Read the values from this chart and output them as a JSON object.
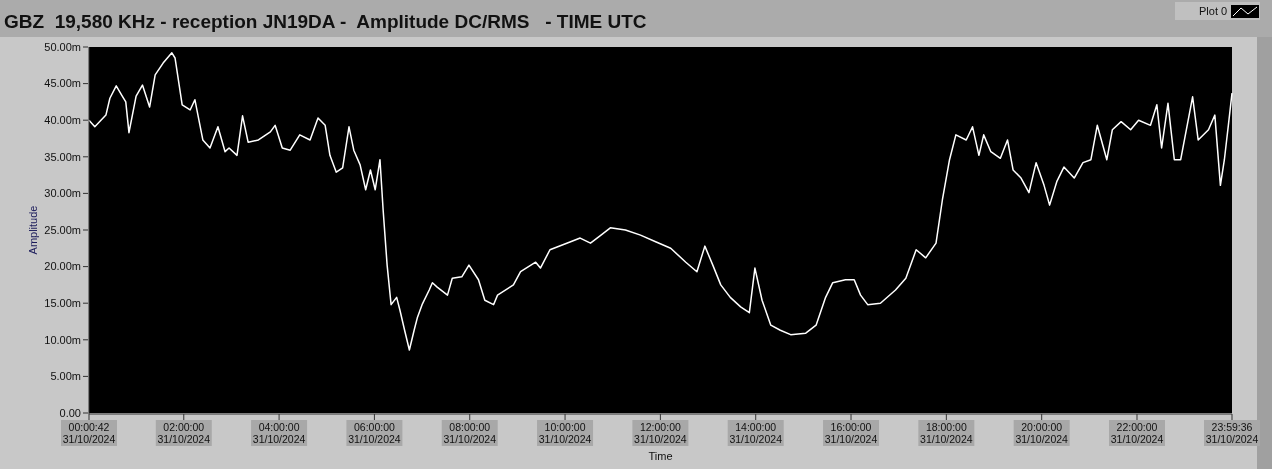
{
  "chart_data": {
    "type": "line",
    "title": "GBZ  19,580 KHz - reception JN19DA -  Amplitude DC/RMS   - TIME UTC",
    "xlabel": "Time",
    "ylabel": "Amplitude",
    "xlim": [
      "2024-10-31T00:00:42",
      "2024-10-31T23:59:36"
    ],
    "ylim": [
      0,
      50
    ],
    "xticks": [
      {
        "value": "2024-10-31T00:00:42",
        "label": "00:00:42 31/10/2024"
      },
      {
        "value": "2024-10-31T02:00",
        "label": "02:00:00 31/10/2024"
      },
      {
        "value": "2024-10-31T04:00",
        "label": "04:00:00 31/10/2024"
      },
      {
        "value": "2024-10-31T06:00",
        "label": "06:00:00 31/10/2024"
      },
      {
        "value": "2024-10-31T08:00",
        "label": "08:00:00 31/10/2024"
      },
      {
        "value": "2024-10-31T10:00",
        "label": "10:00:00 31/10/2024"
      },
      {
        "value": "2024-10-31T12:00",
        "label": "12:00:00 31/10/2024"
      },
      {
        "value": "2024-10-31T14:00",
        "label": "14:00:00 31/10/2024"
      },
      {
        "value": "2024-10-31T16:00",
        "label": "16:00:00 31/10/2024"
      },
      {
        "value": "2024-10-31T18:00",
        "label": "18:00:00 31/10/2024"
      },
      {
        "value": "2024-10-31T20:00",
        "label": "20:00:00 31/10/2024"
      },
      {
        "value": "2024-10-31T22:00",
        "label": "22:00:00 31/10/2024"
      },
      {
        "value": "2024-10-31T23:59:36",
        "label": "23:59:36 31/10/2024"
      }
    ],
    "yticks": [
      {
        "value": 0,
        "label": "0.00"
      },
      {
        "value": 5,
        "label": "5.00m"
      },
      {
        "value": 10,
        "label": "10.00m"
      },
      {
        "value": 15,
        "label": "15.00m"
      },
      {
        "value": 20,
        "label": "20.00m"
      },
      {
        "value": 25,
        "label": "25.00m"
      },
      {
        "value": 30,
        "label": "30.00m"
      },
      {
        "value": 35,
        "label": "35.00m"
      },
      {
        "value": 40,
        "label": "40.00m"
      },
      {
        "value": 45,
        "label": "45.00m"
      },
      {
        "value": 50,
        "label": "50.00m"
      }
    ],
    "legend": "top right",
    "grid": false,
    "marker": "none",
    "line_style": "solid",
    "series": [
      {
        "name": "Plot 0",
        "color": "#ffffff",
        "x": [
          "2024-10-31T00:00:42",
          "2024-10-31T00:08",
          "2024-10-31T00:22",
          "2024-10-31T00:27",
          "2024-10-31T00:35",
          "2024-10-31T00:42",
          "2024-10-31T00:47",
          "2024-10-31T00:51",
          "2024-10-31T01:00",
          "2024-10-31T01:08",
          "2024-10-31T01:17",
          "2024-10-31T01:24",
          "2024-10-31T01:34",
          "2024-10-31T01:45",
          "2024-10-31T01:49",
          "2024-10-31T01:58",
          "2024-10-31T02:08",
          "2024-10-31T02:14",
          "2024-10-31T02:24",
          "2024-10-31T02:33",
          "2024-10-31T02:43",
          "2024-10-31T02:52",
          "2024-10-31T02:57",
          "2024-10-31T03:07",
          "2024-10-31T03:14",
          "2024-10-31T03:21",
          "2024-10-31T03:34",
          "2024-10-31T03:49",
          "2024-10-31T03:55",
          "2024-10-31T04:04",
          "2024-10-31T04:14",
          "2024-10-31T04:26",
          "2024-10-31T04:39",
          "2024-10-31T04:49",
          "2024-10-31T04:58",
          "2024-10-31T05:04",
          "2024-10-31T05:12",
          "2024-10-31T05:20",
          "2024-10-31T05:28",
          "2024-10-31T05:34",
          "2024-10-31T05:42",
          "2024-10-31T05:49",
          "2024-10-31T05:55",
          "2024-10-31T06:01",
          "2024-10-31T06:07",
          "2024-10-31T06:11",
          "2024-10-31T06:16",
          "2024-10-31T06:21",
          "2024-10-31T06:28",
          "2024-10-31T06:32",
          "2024-10-31T06:38",
          "2024-10-31T06:44",
          "2024-10-31T06:50",
          "2024-10-31T06:54",
          "2024-10-31T07:00",
          "2024-10-31T07:09",
          "2024-10-31T07:13",
          "2024-10-31T07:19",
          "2024-10-31T07:32",
          "2024-10-31T07:38",
          "2024-10-31T07:50",
          "2024-10-31T07:59",
          "2024-10-31T08:11",
          "2024-10-31T08:19",
          "2024-10-31T08:30",
          "2024-10-31T08:35",
          "2024-10-31T08:55",
          "2024-10-31T09:04",
          "2024-10-31T09:23",
          "2024-10-31T09:29",
          "2024-10-31T09:41",
          "2024-10-31T10:07",
          "2024-10-31T10:19",
          "2024-10-31T10:32",
          "2024-10-31T10:44",
          "2024-10-31T10:57",
          "2024-10-31T11:16",
          "2024-10-31T11:35",
          "2024-10-31T11:54",
          "2024-10-31T12:13",
          "2024-10-31T12:32",
          "2024-10-31T12:46",
          "2024-10-31T12:56",
          "2024-10-31T13:06",
          "2024-10-31T13:16",
          "2024-10-31T13:28",
          "2024-10-31T13:41",
          "2024-10-31T13:52",
          "2024-10-31T13:59",
          "2024-10-31T14:08",
          "2024-10-31T14:19",
          "2024-10-31T14:31",
          "2024-10-31T14:44",
          "2024-10-31T15:03",
          "2024-10-31T15:16",
          "2024-10-31T15:28",
          "2024-10-31T15:37",
          "2024-10-31T15:53",
          "2024-10-31T16:04",
          "2024-10-31T16:12",
          "2024-10-31T16:21",
          "2024-10-31T16:37",
          "2024-10-31T16:56",
          "2024-10-31T17:09",
          "2024-10-31T17:22",
          "2024-10-31T17:34",
          "2024-10-31T17:47",
          "2024-10-31T17:55",
          "2024-10-31T18:04",
          "2024-10-31T18:12",
          "2024-10-31T18:25",
          "2024-10-31T18:33",
          "2024-10-31T18:41",
          "2024-10-31T18:47",
          "2024-10-31T18:56",
          "2024-10-31T19:08",
          "2024-10-31T19:17",
          "2024-10-31T19:24",
          "2024-10-31T19:34",
          "2024-10-31T19:44",
          "2024-10-31T19:53",
          "2024-10-31T20:03",
          "2024-10-31T20:10",
          "2024-10-31T20:19",
          "2024-10-31T20:28",
          "2024-10-31T20:41",
          "2024-10-31T20:52",
          "2024-10-31T21:02",
          "2024-10-31T21:10",
          "2024-10-31T21:22",
          "2024-10-31T21:29",
          "2024-10-31T21:40",
          "2024-10-31T21:52",
          "2024-10-31T22:02",
          "2024-10-31T22:17",
          "2024-10-31T22:25",
          "2024-10-31T22:31",
          "2024-10-31T22:39",
          "2024-10-31T22:47",
          "2024-10-31T22:55",
          "2024-10-31T23:10",
          "2024-10-31T23:17",
          "2024-10-31T23:30",
          "2024-10-31T23:38",
          "2024-10-31T23:45",
          "2024-10-31T23:50",
          "2024-10-31T23:55",
          "2024-10-31T23:59:36"
        ],
        "values": [
          40.0,
          39.1,
          40.7,
          43.0,
          44.7,
          43.4,
          42.5,
          38.3,
          43.3,
          44.8,
          41.8,
          46.2,
          47.8,
          49.2,
          48.5,
          42.1,
          41.4,
          42.8,
          37.3,
          36.2,
          39.1,
          35.7,
          36.2,
          35.2,
          40.6,
          37.0,
          37.3,
          38.4,
          39.3,
          36.2,
          35.9,
          38.0,
          37.3,
          40.3,
          39.3,
          35.2,
          32.9,
          33.5,
          39.1,
          35.9,
          33.9,
          30.5,
          33.2,
          30.5,
          34.6,
          27.7,
          20.2,
          14.8,
          15.8,
          14.1,
          11.3,
          8.6,
          11.3,
          13.0,
          14.8,
          16.8,
          17.8,
          17.2,
          16.1,
          18.4,
          18.6,
          20.2,
          18.2,
          15.4,
          14.8,
          16.1,
          17.5,
          19.3,
          20.6,
          19.8,
          22.3,
          23.4,
          23.9,
          23.2,
          24.2,
          25.3,
          25.0,
          24.3,
          23.4,
          22.5,
          20.6,
          19.3,
          22.8,
          20.2,
          17.5,
          15.8,
          14.5,
          13.7,
          19.8,
          15.4,
          12.0,
          11.3,
          10.7,
          10.9,
          12.0,
          15.8,
          17.8,
          18.2,
          18.2,
          16.1,
          14.8,
          15.0,
          16.8,
          18.4,
          22.3,
          21.2,
          23.2,
          29.1,
          34.6,
          38.0,
          37.3,
          39.1,
          35.2,
          38.0,
          35.7,
          34.8,
          37.3,
          33.2,
          32.1,
          30.1,
          34.2,
          31.1,
          28.4,
          31.6,
          33.6,
          32.1,
          34.2,
          34.6,
          39.3,
          34.6,
          38.7,
          39.8,
          38.7,
          40.0,
          39.3,
          42.1,
          36.2,
          42.3,
          34.6,
          34.6,
          43.2,
          37.3,
          38.7,
          40.7,
          31.1,
          34.6,
          39.3,
          43.7
        ]
      }
    ]
  }
}
